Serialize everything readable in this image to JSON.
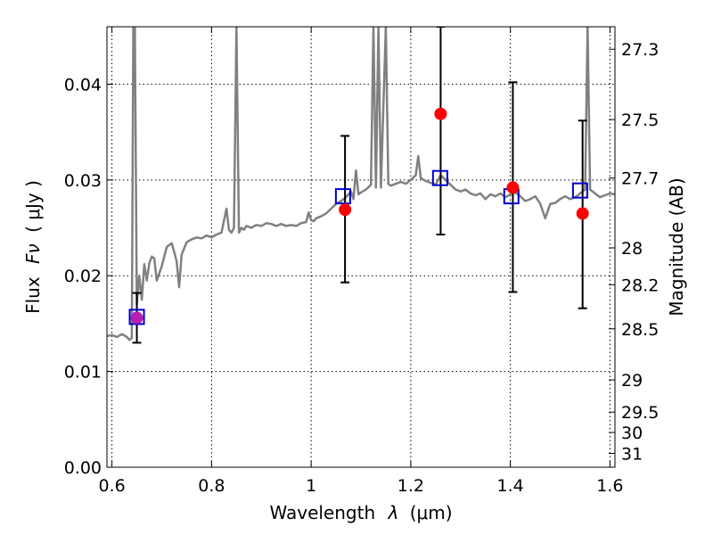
{
  "chart_data": {
    "type": "line",
    "xlabel_text": "Wavelength",
    "xlabel_symbol": "λ",
    "xlabel_unit": "(μm)",
    "ylabel_text": "Flux",
    "ylabel_symbol": "Fν",
    "ylabel_unit": "( μJy )",
    "y2label": "Magnitude (AB)",
    "xlim": [
      0.59,
      1.61
    ],
    "ylim": [
      0.0,
      0.046
    ],
    "x_ticks": [
      0.6,
      0.8,
      1.0,
      1.2,
      1.4,
      1.6
    ],
    "x_tick_labels": [
      "0.6",
      "0.8",
      "1",
      "1.2",
      "1.4",
      "1.6"
    ],
    "y_ticks": [
      0.0,
      0.01,
      0.02,
      0.03,
      0.04
    ],
    "y_tick_labels": [
      "0.00",
      "0.01",
      "0.02",
      "0.03",
      "0.04"
    ],
    "y2_ticks": [
      27.3,
      27.5,
      27.7,
      28,
      28.2,
      28.5,
      29,
      29.5,
      30,
      31
    ],
    "y2_tick_labels": [
      "27.3",
      "27.5",
      "27.7",
      "28",
      "28.2",
      "28.5",
      "29",
      "29.5",
      "30",
      "31"
    ],
    "grid": true,
    "colors": {
      "spectrum": "#808080",
      "observed": "#ff0000",
      "model_box": "#0000cc",
      "error_bar": "#000000",
      "first_point": "#b81fb0"
    },
    "spectrum": {
      "x": [
        0.59,
        0.6,
        0.61,
        0.62,
        0.63,
        0.635,
        0.64,
        0.643,
        0.646,
        0.65,
        0.655,
        0.66,
        0.665,
        0.67,
        0.675,
        0.68,
        0.685,
        0.69,
        0.7,
        0.71,
        0.72,
        0.725,
        0.73,
        0.735,
        0.74,
        0.75,
        0.76,
        0.77,
        0.78,
        0.79,
        0.8,
        0.81,
        0.82,
        0.83,
        0.835,
        0.84,
        0.845,
        0.85,
        0.855,
        0.86,
        0.865,
        0.87,
        0.88,
        0.89,
        0.9,
        0.91,
        0.92,
        0.93,
        0.94,
        0.95,
        0.96,
        0.97,
        0.98,
        0.99,
        0.995,
        1.0,
        1.005,
        1.01,
        1.02,
        1.03,
        1.04,
        1.05,
        1.06,
        1.07,
        1.08,
        1.085,
        1.09,
        1.095,
        1.1,
        1.11,
        1.12,
        1.125,
        1.13,
        1.135,
        1.14,
        1.15,
        1.155,
        1.16,
        1.17,
        1.18,
        1.19,
        1.2,
        1.21,
        1.215,
        1.22,
        1.23,
        1.24,
        1.25,
        1.255,
        1.26,
        1.27,
        1.28,
        1.29,
        1.3,
        1.31,
        1.32,
        1.33,
        1.34,
        1.35,
        1.36,
        1.37,
        1.38,
        1.39,
        1.4,
        1.41,
        1.42,
        1.43,
        1.44,
        1.45,
        1.46,
        1.47,
        1.48,
        1.49,
        1.5,
        1.51,
        1.52,
        1.53,
        1.54,
        1.55,
        1.555,
        1.56,
        1.57,
        1.58,
        1.59,
        1.6,
        1.61
      ],
      "y": [
        0.0137,
        0.0138,
        0.0136,
        0.0139,
        0.0136,
        0.0133,
        0.0135,
        0.046,
        0.046,
        0.017,
        0.02,
        0.0175,
        0.0212,
        0.0195,
        0.0213,
        0.022,
        0.0218,
        0.0195,
        0.021,
        0.023,
        0.0234,
        0.0225,
        0.0215,
        0.0188,
        0.0222,
        0.0235,
        0.0238,
        0.024,
        0.0239,
        0.0242,
        0.024,
        0.0243,
        0.0245,
        0.027,
        0.0248,
        0.0245,
        0.025,
        0.046,
        0.0245,
        0.025,
        0.0248,
        0.0252,
        0.025,
        0.0253,
        0.0252,
        0.0255,
        0.0254,
        0.0252,
        0.0254,
        0.0252,
        0.0253,
        0.0252,
        0.0255,
        0.0256,
        0.0266,
        0.0258,
        0.0257,
        0.026,
        0.0262,
        0.0265,
        0.027,
        0.0275,
        0.0278,
        0.0282,
        0.0288,
        0.028,
        0.031,
        0.0285,
        0.0287,
        0.029,
        0.0295,
        0.046,
        0.0292,
        0.046,
        0.0292,
        0.046,
        0.0296,
        0.0294,
        0.0296,
        0.0298,
        0.0296,
        0.03,
        0.0305,
        0.0325,
        0.0302,
        0.0299,
        0.0297,
        0.0295,
        0.03,
        0.0305,
        0.03,
        0.0295,
        0.029,
        0.0288,
        0.029,
        0.0286,
        0.0284,
        0.0286,
        0.028,
        0.0285,
        0.0283,
        0.0286,
        0.0282,
        0.0285,
        0.0287,
        0.0283,
        0.0278,
        0.028,
        0.0283,
        0.0275,
        0.026,
        0.0275,
        0.0276,
        0.028,
        0.0283,
        0.028,
        0.0282,
        0.0286,
        0.029,
        0.046,
        0.029,
        0.0286,
        0.0282,
        0.0284,
        0.0286,
        0.0285
      ]
    },
    "observed": {
      "x": [
        0.65,
        1.068,
        1.26,
        1.405,
        1.545
      ],
      "y": [
        0.0156,
        0.0269,
        0.0369,
        0.0292,
        0.0265
      ]
    },
    "model": {
      "x": [
        0.65,
        1.064,
        1.259,
        1.402,
        1.54
      ],
      "y": [
        0.0157,
        0.0283,
        0.0302,
        0.0283,
        0.0289
      ]
    },
    "error_bars": {
      "x": [
        0.65,
        1.068,
        1.26,
        1.405,
        1.545
      ],
      "lower": [
        0.013,
        0.0193,
        0.0243,
        0.0183,
        0.0166
      ],
      "upper": [
        0.0182,
        0.0346,
        0.046,
        0.0402,
        0.0362
      ]
    }
  }
}
